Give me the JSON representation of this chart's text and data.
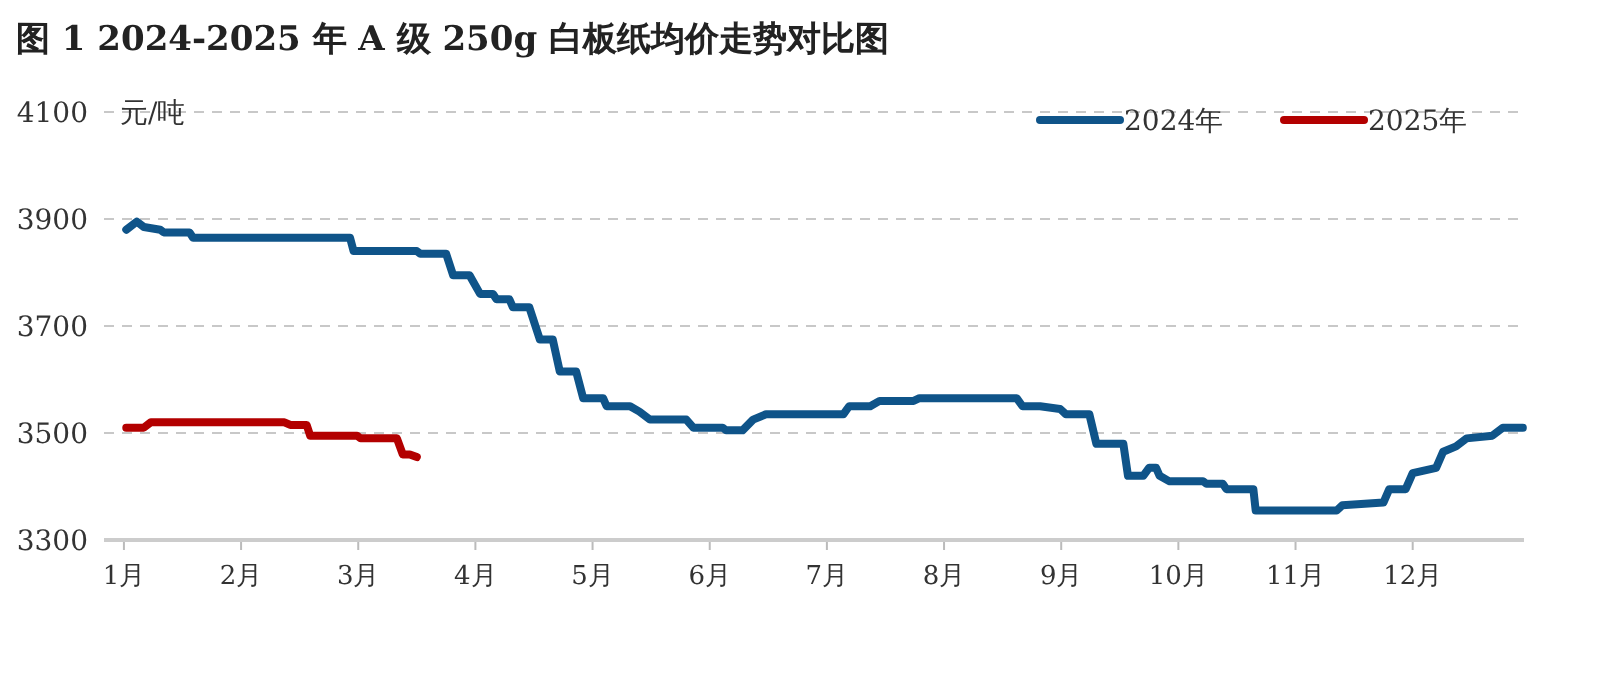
{
  "chart_data": {
    "type": "line",
    "title": "图 1 2024-2025 年 A 级 250g 白板纸均价走势对比图",
    "ylabel": "元/吨",
    "xlim": [
      0.83,
      12.95
    ],
    "xticks": [
      {
        "value": 1,
        "label": "1月"
      },
      {
        "value": 2,
        "label": "2月"
      },
      {
        "value": 3,
        "label": "3月"
      },
      {
        "value": 4,
        "label": "4月"
      },
      {
        "value": 5,
        "label": "5月"
      },
      {
        "value": 6,
        "label": "6月"
      },
      {
        "value": 7,
        "label": "7月"
      },
      {
        "value": 8,
        "label": "8月"
      },
      {
        "value": 9,
        "label": "9月"
      },
      {
        "value": 10,
        "label": "10月"
      },
      {
        "value": 11,
        "label": "11月"
      },
      {
        "value": 12,
        "label": "12月"
      }
    ],
    "ylim": [
      3300,
      4100
    ],
    "yticks": [
      3300,
      3500,
      3700,
      3900,
      4100
    ],
    "grid": "y",
    "legend": "top right",
    "marker": "none",
    "line_style": "solid",
    "series": [
      {
        "name": "2024年",
        "color": "#0f5489",
        "x": [
          1.02,
          1.11,
          1.17,
          1.31,
          1.34,
          1.56,
          1.59,
          2.93,
          2.96,
          3.5,
          3.53,
          3.75,
          3.81,
          3.95,
          4.04,
          4.15,
          4.18,
          4.29,
          4.32,
          4.46,
          4.55,
          4.66,
          4.72,
          4.86,
          4.92,
          5.09,
          5.12,
          5.32,
          5.4,
          5.49,
          5.8,
          5.86,
          6.11,
          6.14,
          6.28,
          6.37,
          6.48,
          6.51,
          7.14,
          7.19,
          7.37,
          7.45,
          7.74,
          7.79,
          8.62,
          8.67,
          8.82,
          8.99,
          9.04,
          9.24,
          9.3,
          9.53,
          9.57,
          9.7,
          9.75,
          9.81,
          9.84,
          9.92,
          10.21,
          10.24,
          10.38,
          10.41,
          10.64,
          10.66,
          11.35,
          11.4,
          11.75,
          11.8,
          11.94,
          12.0,
          12.2,
          12.26,
          12.37,
          12.46,
          12.68,
          12.77,
          12.94
        ],
        "values": [
          3880,
          3895,
          3885,
          3880,
          3875,
          3875,
          3865,
          3865,
          3840,
          3840,
          3835,
          3835,
          3795,
          3795,
          3760,
          3760,
          3750,
          3750,
          3735,
          3735,
          3675,
          3675,
          3615,
          3615,
          3565,
          3565,
          3550,
          3550,
          3540,
          3525,
          3525,
          3510,
          3510,
          3505,
          3505,
          3525,
          3535,
          3535,
          3535,
          3550,
          3550,
          3560,
          3560,
          3565,
          3565,
          3550,
          3550,
          3545,
          3535,
          3535,
          3480,
          3480,
          3420,
          3420,
          3435,
          3435,
          3420,
          3410,
          3410,
          3405,
          3405,
          3395,
          3395,
          3355,
          3355,
          3365,
          3370,
          3395,
          3395,
          3425,
          3435,
          3465,
          3475,
          3490,
          3495,
          3510,
          3510
        ]
      },
      {
        "name": "2025年",
        "color": "#b30000",
        "x": [
          1.02,
          1.17,
          1.23,
          2.37,
          2.42,
          2.56,
          2.59,
          2.99,
          3.02,
          3.33,
          3.38,
          3.44,
          3.5
        ],
        "values": [
          3510,
          3510,
          3520,
          3520,
          3515,
          3515,
          3495,
          3495,
          3490,
          3490,
          3460,
          3460,
          3455
        ]
      }
    ]
  }
}
